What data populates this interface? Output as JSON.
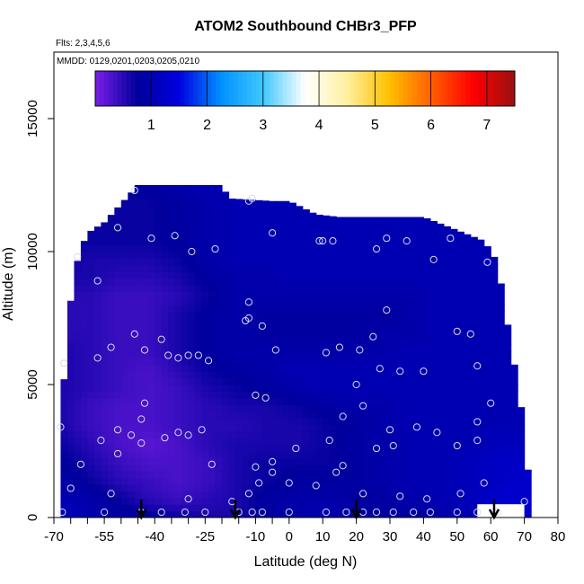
{
  "chart_data": {
    "type": "heatmap",
    "title": "ATOM2 Southbound CHBr3_PFP",
    "flights_note": "Flts: 2,3,4,5,6",
    "dates_note": "MMDD: 0129,0201,0203,0205,0210",
    "xlabel": "Latitude (deg N)",
    "ylabel": "Altitude (m)",
    "xlim": [
      -70,
      80
    ],
    "ylim": [
      0,
      17500
    ],
    "x_ticks": [
      -70,
      -55,
      -40,
      -25,
      -10,
      0,
      10,
      20,
      30,
      40,
      50,
      60,
      70,
      80
    ],
    "x_tick_labels": [
      "-70",
      "-55",
      "-40",
      "-25",
      "-10",
      "0",
      "10",
      "20",
      "30",
      "40",
      "50",
      "60",
      "70",
      "80"
    ],
    "x_minor_ticks": [
      -65,
      -60,
      -50,
      -45,
      -35,
      -30,
      -20,
      -15,
      -5
    ],
    "y_ticks": [
      0,
      5000,
      10000,
      15000
    ],
    "y_tick_labels": [
      "0",
      "5000",
      "10000",
      "15000"
    ],
    "colorbar": {
      "range": [
        0,
        7.5
      ],
      "ticks": [
        1,
        2,
        3,
        4,
        5,
        6,
        7
      ],
      "tick_labels": [
        "1",
        "2",
        "3",
        "4",
        "5",
        "6",
        "7"
      ],
      "colors": [
        "#7a1ee8",
        "#00009c",
        "#0000e0",
        "#0090ff",
        "#40c8ff",
        "#ffffff",
        "#fff0a0",
        "#ffc000",
        "#ff6000",
        "#ff0000",
        "#9a1010"
      ]
    },
    "top_boundary": [
      [
        -68,
        3300
      ],
      [
        -66,
        7100
      ],
      [
        -64,
        9200
      ],
      [
        -62,
        10100
      ],
      [
        -60,
        10700
      ],
      [
        -55,
        11100
      ],
      [
        -50,
        11800
      ],
      [
        -45,
        12500
      ],
      [
        -20,
        12500
      ],
      [
        -18,
        12000
      ],
      [
        -5,
        11900
      ],
      [
        0,
        11900
      ],
      [
        8,
        11400
      ],
      [
        15,
        11300
      ],
      [
        40,
        11300
      ],
      [
        50,
        10800
      ],
      [
        58,
        10400
      ],
      [
        62,
        9600
      ],
      [
        64,
        8000
      ],
      [
        66,
        6500
      ],
      [
        68,
        5000
      ],
      [
        70,
        3300
      ],
      [
        71,
        1800
      ],
      [
        72,
        600
      ]
    ],
    "grid_values": [
      [
        1.1,
        1.0,
        0.9,
        0.8,
        0.7,
        0.6,
        0.6,
        0.8,
        0.9,
        1.0,
        0.9,
        0.8,
        0.8,
        0.9,
        1.0,
        1.2,
        1.3
      ],
      [
        1.0,
        0.9,
        0.7,
        0.5,
        0.4,
        0.5,
        0.6,
        0.8,
        0.9,
        0.9,
        0.8,
        0.8,
        0.9,
        1.0,
        1.1,
        1.3,
        1.3
      ],
      [
        0.9,
        0.7,
        0.5,
        0.4,
        0.3,
        0.4,
        0.6,
        0.7,
        0.8,
        0.8,
        0.8,
        0.9,
        1.0,
        1.0,
        1.1,
        1.2,
        1.3
      ],
      [
        0.8,
        0.6,
        0.4,
        0.3,
        0.3,
        0.4,
        0.6,
        0.7,
        0.7,
        0.7,
        0.8,
        0.9,
        1.0,
        1.0,
        1.1,
        1.2,
        1.2
      ],
      [
        0.7,
        0.5,
        0.3,
        0.2,
        0.3,
        0.5,
        0.6,
        0.6,
        0.6,
        0.7,
        0.8,
        0.9,
        1.0,
        1.0,
        1.0,
        1.1,
        1.1
      ],
      [
        0.6,
        0.4,
        0.3,
        0.3,
        0.4,
        0.5,
        0.5,
        0.6,
        0.6,
        0.7,
        0.8,
        0.9,
        1.0,
        1.0,
        1.0,
        1.0,
        1.0
      ],
      [
        0.6,
        0.4,
        0.3,
        0.3,
        0.4,
        0.5,
        0.6,
        0.6,
        0.7,
        0.8,
        0.9,
        0.9,
        1.0,
        1.0,
        1.0,
        1.0,
        1.0
      ],
      [
        0.6,
        0.5,
        0.4,
        0.3,
        0.4,
        0.6,
        0.7,
        0.8,
        0.9,
        1.0,
        1.0,
        1.0,
        1.0,
        1.0,
        1.0,
        1.0,
        1.0
      ],
      [
        0.6,
        0.5,
        0.4,
        0.3,
        0.5,
        0.7,
        0.8,
        0.9,
        1.0,
        1.0,
        1.0,
        1.0,
        1.0,
        1.0,
        1.0,
        1.0,
        1.0
      ],
      [
        0.6,
        0.5,
        0.4,
        0.4,
        0.6,
        0.8,
        0.9,
        0.9,
        0.9,
        0.9,
        0.9,
        0.9,
        1.0,
        1.0,
        1.0,
        1.0,
        1.0
      ],
      [
        0.5,
        0.5,
        0.4,
        0.4,
        0.6,
        0.8,
        0.9,
        0.8,
        0.8,
        0.8,
        0.8,
        0.9,
        0.9,
        1.0,
        1.0,
        1.0,
        1.0
      ],
      [
        0.5,
        0.5,
        0.4,
        0.4,
        0.6,
        0.8,
        0.9,
        0.8,
        0.8,
        0.8,
        0.8,
        0.8,
        0.9,
        1.0,
        1.0,
        1.0,
        1.0
      ],
      [
        0.5,
        0.5,
        0.4,
        0.4,
        0.5,
        0.7,
        0.9,
        0.9,
        0.9,
        0.9,
        0.9,
        0.9,
        0.9,
        1.0,
        1.0,
        1.0,
        1.0
      ],
      [
        0.6,
        0.6,
        0.5,
        0.5,
        0.6,
        0.8,
        0.9,
        0.9,
        1.0,
        1.0,
        1.0,
        1.0,
        1.0,
        1.0,
        1.0,
        1.0,
        1.0
      ],
      [
        0.7,
        0.6,
        0.6,
        0.6,
        0.7,
        0.9,
        1.0,
        1.0,
        1.0,
        1.0,
        1.0,
        1.0,
        1.0,
        1.0,
        1.0,
        1.0,
        1.0
      ],
      [
        0.8,
        0.7,
        0.7,
        0.7,
        0.8,
        0.9,
        1.0,
        1.0,
        1.0,
        1.0,
        1.0,
        1.0,
        1.0,
        1.0,
        1.0,
        1.0,
        1.0
      ],
      [
        0.8,
        0.7,
        0.7,
        0.7,
        0.8,
        0.9,
        1.0,
        1.0,
        1.0,
        1.0,
        1.0,
        1.0,
        1.0,
        1.0,
        1.0,
        1.0,
        1.0
      ],
      [
        0.8,
        0.8,
        0.7,
        0.7,
        0.8,
        0.9,
        1.0,
        1.0,
        1.0,
        1.0,
        1.0,
        1.0,
        1.0,
        1.0,
        1.0,
        1.0,
        1.0
      ],
      [
        0.9,
        0.9,
        0.8,
        0.8,
        0.9,
        1.0,
        1.0,
        1.0,
        1.0,
        1.0,
        1.0,
        1.0,
        1.0,
        1.0,
        1.0,
        1.0,
        1.0
      ]
    ],
    "grid_lat_range": [
      -68,
      72
    ],
    "grid_alt_range": [
      0,
      12500
    ],
    "sample_points": [
      [
        -67.5,
        200
      ],
      [
        -55,
        200
      ],
      [
        -44,
        200
      ],
      [
        -38,
        200
      ],
      [
        -31,
        200
      ],
      [
        -25,
        200
      ],
      [
        -15,
        200
      ],
      [
        -11,
        200
      ],
      [
        -8,
        200
      ],
      [
        0,
        200
      ],
      [
        11,
        200
      ],
      [
        17,
        200
      ],
      [
        22,
        200
      ],
      [
        26,
        200
      ],
      [
        31,
        200
      ],
      [
        37,
        200
      ],
      [
        42,
        200
      ],
      [
        50,
        200
      ],
      [
        56,
        200
      ],
      [
        62,
        200
      ],
      [
        70,
        600
      ],
      [
        -65,
        1100
      ],
      [
        -53,
        900
      ],
      [
        -30,
        700
      ],
      [
        -17,
        600
      ],
      [
        -12,
        900
      ],
      [
        -9,
        1300
      ],
      [
        -5,
        1700
      ],
      [
        0,
        1300
      ],
      [
        8,
        1200
      ],
      [
        14,
        1700
      ],
      [
        22,
        900
      ],
      [
        33,
        800
      ],
      [
        41,
        700
      ],
      [
        51,
        900
      ],
      [
        58,
        1300
      ],
      [
        -62,
        2000
      ],
      [
        -51,
        2400
      ],
      [
        -44,
        2800
      ],
      [
        -23,
        2000
      ],
      [
        -10,
        1900
      ],
      [
        -5,
        2100
      ],
      [
        2,
        2600
      ],
      [
        16,
        1950
      ],
      [
        26,
        2600
      ],
      [
        31,
        2700
      ],
      [
        44,
        3200
      ],
      [
        50,
        2700
      ],
      [
        56,
        2900
      ],
      [
        -68,
        3400
      ],
      [
        -56,
        2900
      ],
      [
        -51,
        3300
      ],
      [
        -47,
        3100
      ],
      [
        -44,
        3700
      ],
      [
        -43,
        4300
      ],
      [
        -37,
        3000
      ],
      [
        -33,
        3200
      ],
      [
        -30,
        3100
      ],
      [
        -26,
        3300
      ],
      [
        -10,
        4600
      ],
      [
        -7,
        4500
      ],
      [
        12,
        2900
      ],
      [
        16,
        3800
      ],
      [
        22,
        4200
      ],
      [
        30,
        3300
      ],
      [
        38,
        3400
      ],
      [
        56,
        3600
      ],
      [
        60,
        4300
      ],
      [
        -67,
        5800
      ],
      [
        -57,
        6000
      ],
      [
        -53,
        6400
      ],
      [
        -43,
        6300
      ],
      [
        -38,
        6700
      ],
      [
        -36,
        6100
      ],
      [
        -33,
        6000
      ],
      [
        -30,
        6100
      ],
      [
        -27,
        6100
      ],
      [
        -24,
        5900
      ],
      [
        -4,
        6300
      ],
      [
        11,
        6200
      ],
      [
        15,
        6400
      ],
      [
        20,
        5000
      ],
      [
        21,
        6300
      ],
      [
        25,
        6800
      ],
      [
        27,
        5600
      ],
      [
        33,
        5500
      ],
      [
        40,
        5500
      ],
      [
        50,
        7000
      ],
      [
        54,
        6900
      ],
      [
        56,
        5700
      ],
      [
        -57,
        8900
      ],
      [
        -46,
        6900
      ],
      [
        -13,
        7400
      ],
      [
        -12,
        8100
      ],
      [
        -8,
        7200
      ],
      [
        -12,
        7500
      ],
      [
        29,
        7800
      ],
      [
        -63,
        9800
      ],
      [
        -51,
        10900
      ],
      [
        -41,
        10500
      ],
      [
        -34,
        10600
      ],
      [
        -29,
        10000
      ],
      [
        -22,
        10100
      ],
      [
        -5,
        10700
      ],
      [
        9,
        10400
      ],
      [
        10,
        10400
      ],
      [
        13,
        10400
      ],
      [
        26,
        10100
      ],
      [
        29,
        10500
      ],
      [
        35,
        10400
      ],
      [
        43,
        9700
      ],
      [
        48,
        10500
      ],
      [
        59,
        9600
      ],
      [
        -46,
        12300
      ],
      [
        -11,
        12000
      ],
      [
        -12,
        11900
      ]
    ],
    "arrows": [
      -44,
      -16,
      20,
      61
    ]
  }
}
